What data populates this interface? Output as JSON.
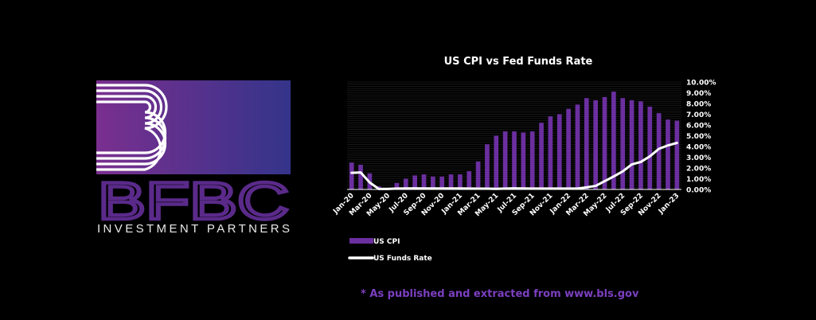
{
  "brand": {
    "mark": "BFBC",
    "tagline": "INVESTMENT PARTNERS",
    "colors": {
      "gradient_start": "#7a2f8f",
      "gradient_end": "#34348a",
      "mark": "#5a2a8a",
      "tagline": "#e8e8e8"
    }
  },
  "footnote": "* As published and extracted from www.bls.gov",
  "chart_data": {
    "type": "bar+line",
    "title": "US CPI vs Fed Funds Rate",
    "x_tick_labels": [
      "Jan-20",
      "Mar-20",
      "May-20",
      "Jul-20",
      "Sep-20",
      "Nov-20",
      "Jan-21",
      "Mar-21",
      "May-21",
      "Jul-21",
      "Sep-21",
      "Nov-21",
      "Jan-22",
      "Mar-22",
      "May-22",
      "Jul-22",
      "Sep-22",
      "Nov-22",
      "Jan-23"
    ],
    "categories": [
      "Jan-20",
      "Feb-20",
      "Mar-20",
      "Apr-20",
      "May-20",
      "Jun-20",
      "Jul-20",
      "Aug-20",
      "Sep-20",
      "Oct-20",
      "Nov-20",
      "Dec-20",
      "Jan-21",
      "Feb-21",
      "Mar-21",
      "Apr-21",
      "May-21",
      "Jun-21",
      "Jul-21",
      "Aug-21",
      "Sep-21",
      "Oct-21",
      "Nov-21",
      "Dec-21",
      "Jan-22",
      "Feb-22",
      "Mar-22",
      "Apr-22",
      "May-22",
      "Jun-22",
      "Jul-22",
      "Aug-22",
      "Sep-22",
      "Oct-22",
      "Nov-22",
      "Dec-22",
      "Jan-23"
    ],
    "series": [
      {
        "name": "US CPI",
        "kind": "bar",
        "color": "#6b2fa0",
        "values": [
          2.5,
          2.3,
          1.5,
          0.3,
          0.1,
          0.6,
          1.0,
          1.3,
          1.4,
          1.2,
          1.2,
          1.4,
          1.4,
          1.7,
          2.6,
          4.2,
          5.0,
          5.4,
          5.4,
          5.3,
          5.4,
          6.2,
          6.8,
          7.0,
          7.5,
          7.9,
          8.5,
          8.3,
          8.6,
          9.1,
          8.5,
          8.3,
          8.2,
          7.7,
          7.1,
          6.5,
          6.4
        ]
      },
      {
        "name": "US Funds Rate",
        "kind": "line",
        "color": "#ffffff",
        "values": [
          1.55,
          1.58,
          0.65,
          0.05,
          0.05,
          0.08,
          0.09,
          0.1,
          0.09,
          0.09,
          0.09,
          0.09,
          0.09,
          0.08,
          0.07,
          0.07,
          0.06,
          0.08,
          0.1,
          0.09,
          0.08,
          0.08,
          0.08,
          0.08,
          0.08,
          0.08,
          0.2,
          0.33,
          0.77,
          1.21,
          1.68,
          2.33,
          2.56,
          3.08,
          3.78,
          4.1,
          4.33
        ]
      }
    ],
    "y_axis": {
      "position": "right",
      "ylim": [
        0,
        10
      ],
      "ticks": [
        "0.00%",
        "1.00%",
        "2.00%",
        "3.00%",
        "4.00%",
        "5.00%",
        "6.00%",
        "7.00%",
        "8.00%",
        "9.00%",
        "10.00%"
      ]
    },
    "legend": "bottom-left",
    "grid": true
  }
}
